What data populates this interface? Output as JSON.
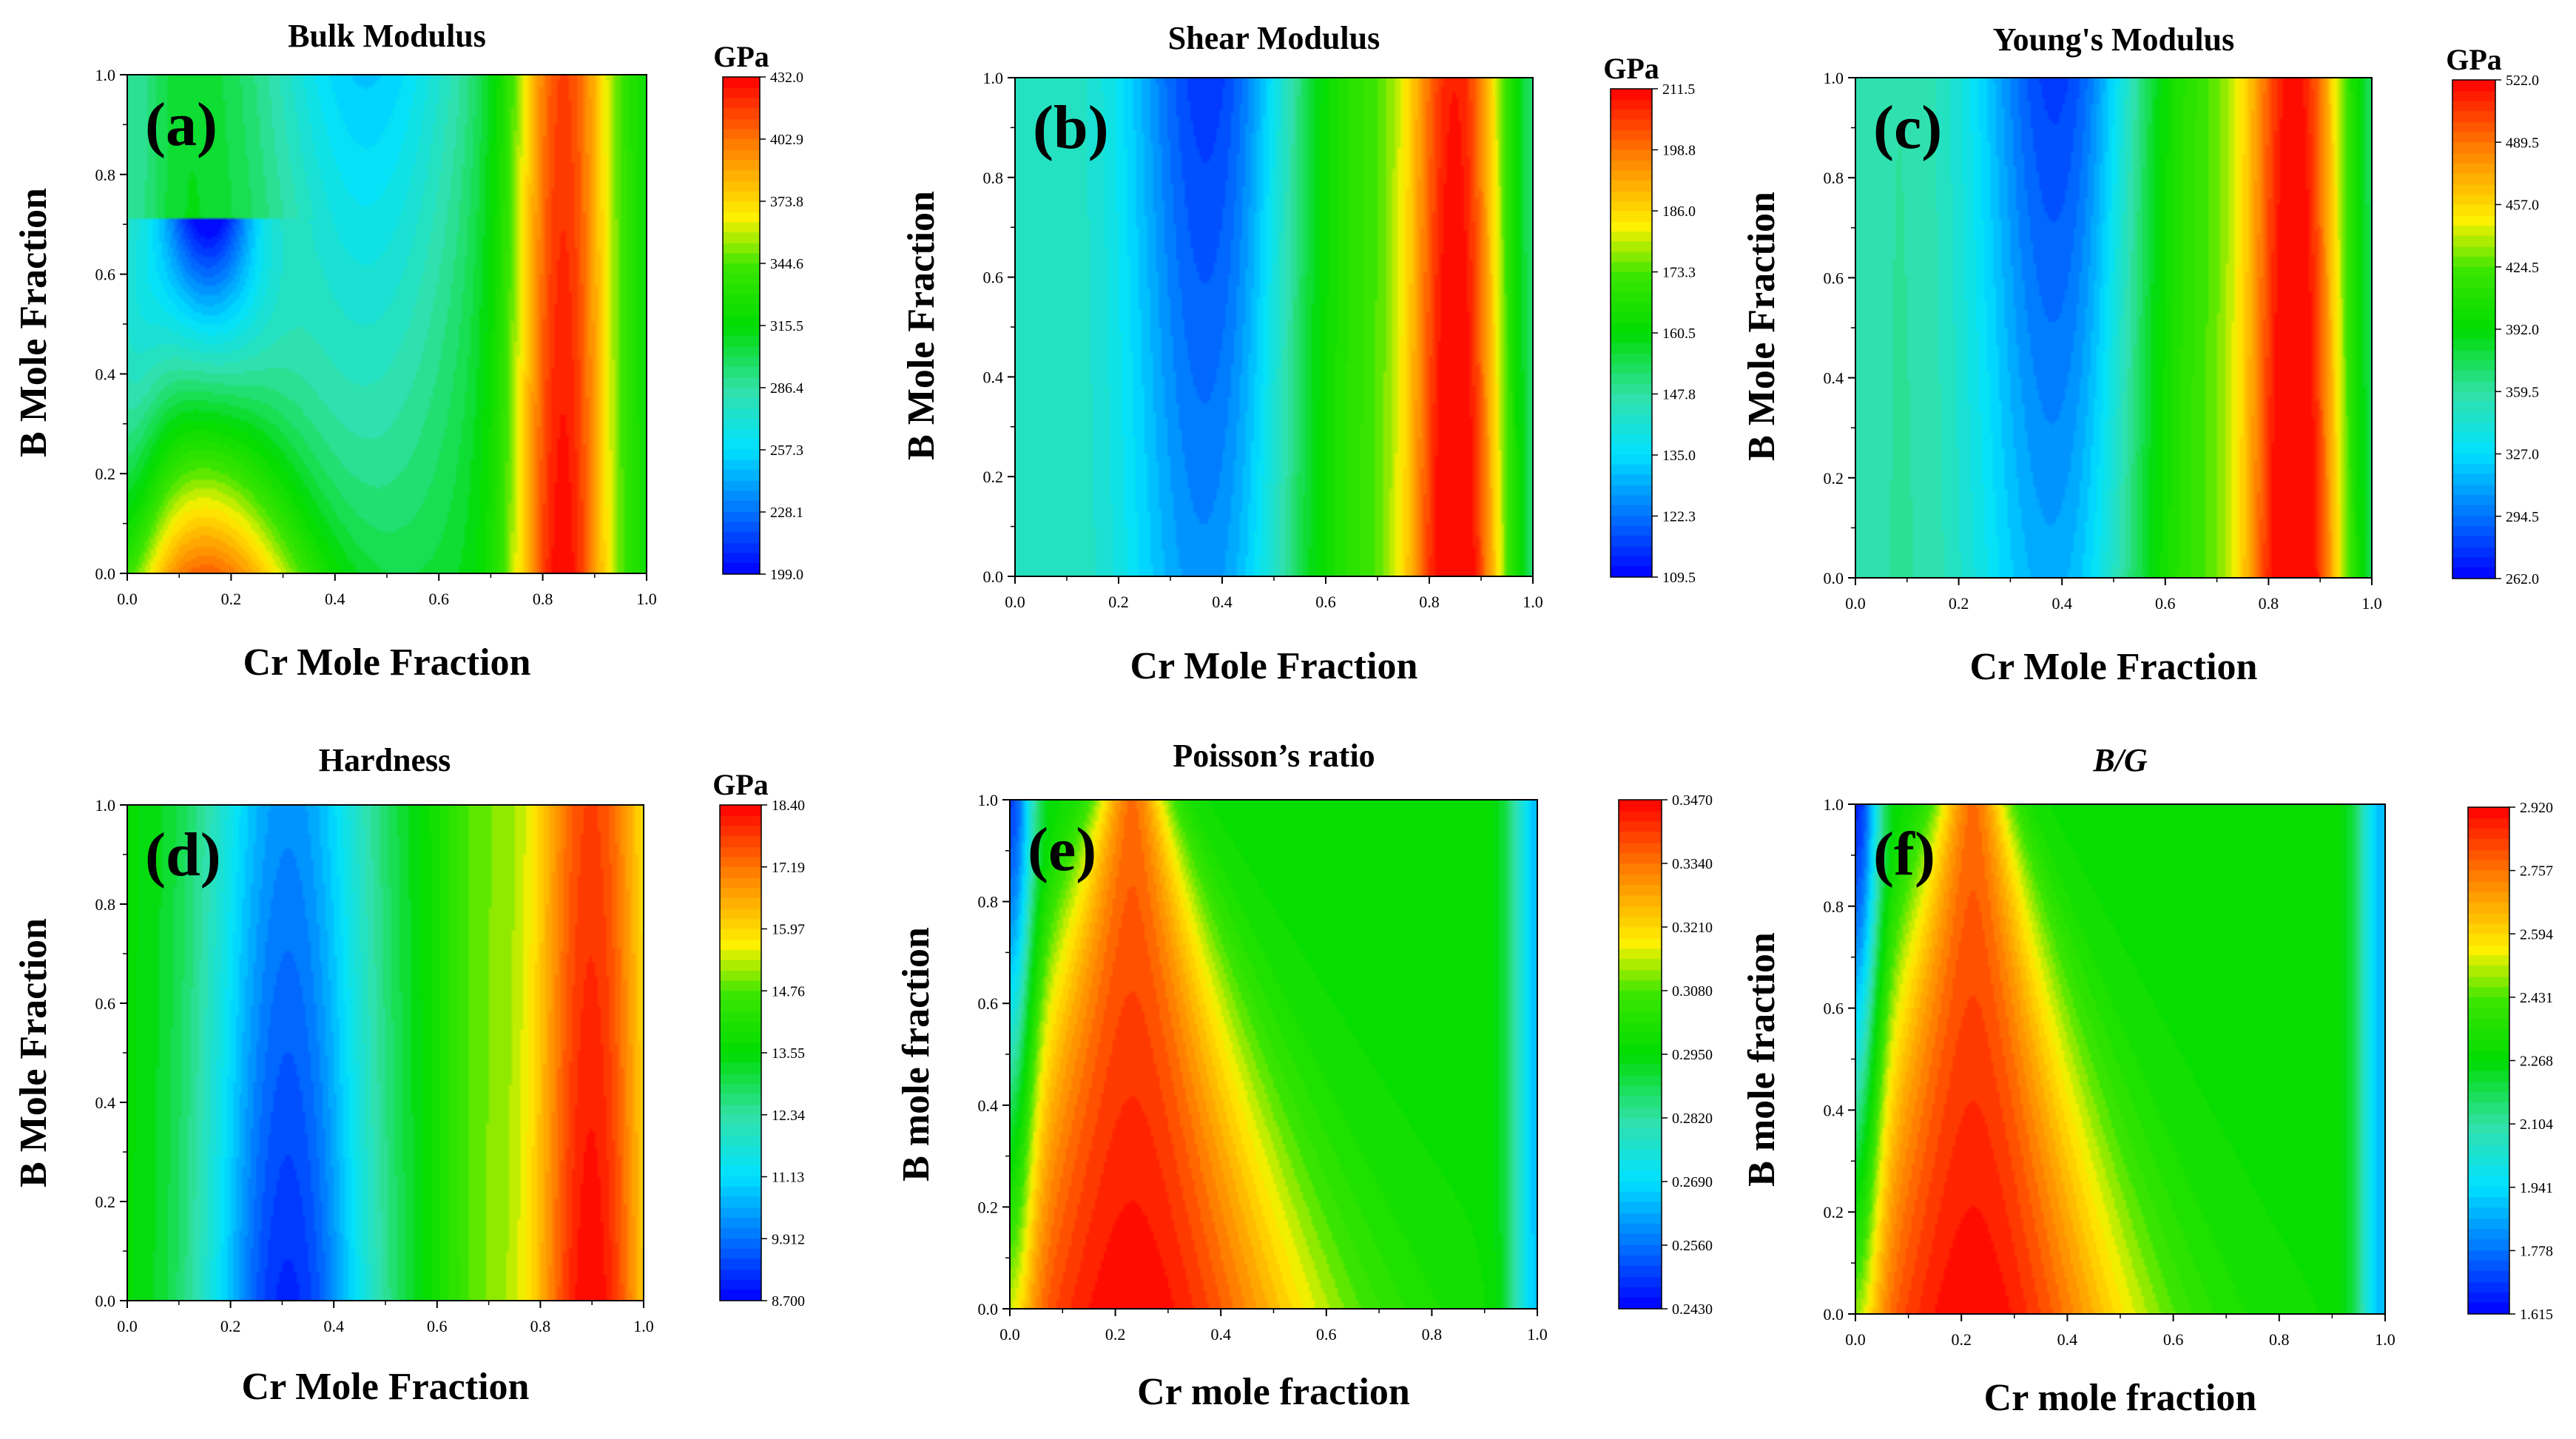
{
  "figure": {
    "panels": [
      {
        "letter": "(a)",
        "title": "Bulk Modulus",
        "title_italic": false,
        "xlabel": "Cr Mole Fraction",
        "ylabel": "B Mole Fraction",
        "colorbar_unit": "GPa",
        "colorbar_ticks": [
          "199.0",
          "228.1",
          "257.3",
          "286.4",
          "315.5",
          "344.6",
          "373.8",
          "402.9",
          "432.0"
        ]
      },
      {
        "letter": "(b)",
        "title": "Shear Modulus",
        "title_italic": false,
        "xlabel": "Cr Mole Fraction",
        "ylabel": "B Mole Fraction",
        "colorbar_unit": "GPa",
        "colorbar_ticks": [
          "109.5",
          "122.3",
          "135.0",
          "147.8",
          "160.5",
          "173.3",
          "186.0",
          "198.8",
          "211.5"
        ]
      },
      {
        "letter": "(c)",
        "title": "Young's Modulus",
        "title_italic": false,
        "xlabel": "Cr Mole Fraction",
        "ylabel": "B Mole Fraction",
        "colorbar_unit": "GPa",
        "colorbar_ticks": [
          "262.0",
          "294.5",
          "327.0",
          "359.5",
          "392.0",
          "424.5",
          "457.0",
          "489.5",
          "522.0"
        ]
      },
      {
        "letter": "(d)",
        "title": "Hardness",
        "title_italic": false,
        "xlabel": "Cr Mole Fraction",
        "ylabel": "B Mole Fraction",
        "colorbar_unit": "GPa",
        "colorbar_ticks": [
          "8.700",
          "9.912",
          "11.13",
          "12.34",
          "13.55",
          "14.76",
          "15.97",
          "17.19",
          "18.40"
        ]
      },
      {
        "letter": "(e)",
        "title": "Poisson’s ratio",
        "title_italic": false,
        "xlabel": "Cr mole fraction",
        "ylabel": "B mole fraction",
        "colorbar_unit": "",
        "colorbar_ticks": [
          "0.2430",
          "0.2560",
          "0.2690",
          "0.2820",
          "0.2950",
          "0.3080",
          "0.3210",
          "0.3340",
          "0.3470"
        ]
      },
      {
        "letter": "(f)",
        "title": "B/G",
        "title_italic": true,
        "xlabel": "Cr mole fraction",
        "ylabel": "B mole fraction",
        "colorbar_unit": "",
        "colorbar_ticks": [
          "1.615",
          "1.778",
          "1.941",
          "2.104",
          "2.268",
          "2.431",
          "2.594",
          "2.757",
          "2.920"
        ]
      }
    ],
    "axis_ticks": [
      "0.0",
      "0.2",
      "0.4",
      "0.6",
      "0.8",
      "1.0"
    ]
  },
  "chart_data": [
    {
      "type": "heatmap",
      "title": "Bulk Modulus",
      "xlabel": "Cr Mole Fraction",
      "ylabel": "B Mole Fraction",
      "xlim": [
        0,
        1
      ],
      "ylim": [
        0,
        1
      ],
      "colorbar_label": "GPa",
      "zlim": [
        199.0,
        432.0
      ],
      "colorbar_ticks": [
        199.0,
        228.1,
        257.3,
        286.4,
        315.5,
        344.6,
        373.8,
        402.9,
        432.0
      ],
      "shape": "peaks",
      "features": [
        {
          "type": "max",
          "x": 0.15,
          "y": 0.0,
          "value": 400,
          "top_y": 0.72
        },
        {
          "type": "min",
          "x": 0.46,
          "y": 1.0,
          "value": 248
        },
        {
          "type": "max",
          "x": 0.84,
          "y": 0.0,
          "value": 432
        },
        {
          "type": "edge",
          "x": 0.0,
          "value": 300
        },
        {
          "type": "edge",
          "x": 1.0,
          "value": 330
        }
      ]
    },
    {
      "type": "heatmap",
      "title": "Shear Modulus",
      "xlabel": "Cr Mole Fraction",
      "ylabel": "B Mole Fraction",
      "xlim": [
        0,
        1
      ],
      "ylim": [
        0,
        1
      ],
      "colorbar_label": "GPa",
      "zlim": [
        109.5,
        211.5
      ],
      "colorbar_ticks": [
        109.5,
        122.3,
        135.0,
        147.8,
        160.5,
        173.3,
        186.0,
        198.8,
        211.5
      ],
      "shape": "bands",
      "features": [
        {
          "type": "edge",
          "x": 0.0,
          "value": 140
        },
        {
          "type": "min",
          "x": 0.38,
          "y": 1.0,
          "value": 112
        },
        {
          "type": "max",
          "x": 0.86,
          "y": 0.0,
          "value": 211.5
        },
        {
          "type": "edge",
          "x": 1.0,
          "value": 165
        }
      ]
    },
    {
      "type": "heatmap",
      "title": "Young's Modulus",
      "xlabel": "Cr Mole Fraction",
      "ylabel": "B Mole Fraction",
      "xlim": [
        0,
        1
      ],
      "ylim": [
        0,
        1
      ],
      "colorbar_label": "GPa",
      "zlim": [
        262.0,
        522.0
      ],
      "colorbar_ticks": [
        262.0,
        294.5,
        327.0,
        359.5,
        392.0,
        424.5,
        457.0,
        489.5,
        522.0
      ],
      "shape": "bands",
      "features": [
        {
          "type": "edge",
          "x": 0.0,
          "value": 345
        },
        {
          "type": "min",
          "x": 0.4,
          "y": 1.0,
          "value": 272
        },
        {
          "type": "max",
          "x": 0.86,
          "y": 0.0,
          "value": 522.0
        },
        {
          "type": "edge",
          "x": 1.0,
          "value": 420
        }
      ]
    },
    {
      "type": "heatmap",
      "title": "Hardness",
      "xlabel": "Cr Mole Fraction",
      "ylabel": "B Mole Fraction",
      "xlim": [
        0,
        1
      ],
      "ylim": [
        0,
        1
      ],
      "colorbar_label": "GPa",
      "zlim": [
        8.7,
        18.4
      ],
      "colorbar_ticks": [
        8.7,
        9.912,
        11.13,
        12.34,
        13.55,
        14.76,
        15.97,
        17.19,
        18.4
      ],
      "shape": "bands",
      "features": [
        {
          "type": "edge",
          "x": 0.0,
          "value": 14.0
        },
        {
          "type": "min",
          "x": 0.31,
          "y": 0.0,
          "value": 8.9
        },
        {
          "type": "max",
          "x": 0.9,
          "y": 0.0,
          "value": 18.4
        },
        {
          "type": "edge",
          "x": 1.0,
          "value": 17.2
        }
      ]
    },
    {
      "type": "heatmap",
      "title": "Poisson’s ratio",
      "xlabel": "Cr mole fraction",
      "ylabel": "B mole fraction",
      "xlim": [
        0,
        1
      ],
      "ylim": [
        0,
        1
      ],
      "zlim": [
        0.243,
        0.347
      ],
      "colorbar_ticks": [
        0.243,
        0.256,
        0.269,
        0.282,
        0.295,
        0.308,
        0.321,
        0.334,
        0.347
      ],
      "shape": "dome",
      "features": [
        {
          "type": "min",
          "x": 0.0,
          "y": 1.0,
          "value": 0.25
        },
        {
          "type": "max",
          "x": 0.23,
          "y": 0.0,
          "value": 0.347
        },
        {
          "type": "plateau",
          "value": 0.3
        },
        {
          "type": "edge",
          "x": 1.0,
          "value": 0.268
        }
      ]
    },
    {
      "type": "heatmap",
      "title": "B/G",
      "xlabel": "Cr mole fraction",
      "ylabel": "B mole fraction",
      "xlim": [
        0,
        1
      ],
      "ylim": [
        0,
        1
      ],
      "zlim": [
        1.615,
        2.92
      ],
      "colorbar_ticks": [
        1.615,
        1.778,
        1.941,
        2.104,
        2.268,
        2.431,
        2.594,
        2.757,
        2.92
      ],
      "shape": "dome",
      "features": [
        {
          "type": "min",
          "x": 0.0,
          "y": 1.0,
          "value": 1.7
        },
        {
          "type": "max",
          "x": 0.22,
          "y": 0.0,
          "value": 2.92
        },
        {
          "type": "plateau",
          "value": 2.25
        },
        {
          "type": "edge",
          "x": 1.0,
          "value": 1.85
        }
      ]
    }
  ]
}
